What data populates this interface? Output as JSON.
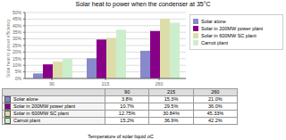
{
  "chart_data": {
    "type": "bar",
    "title": "Solar heat to power when the condenser at 35°C",
    "xlabel": "Temperature of solar liquid oC",
    "ylabel": "Solar heat to power efficiency",
    "categories": [
      "90",
      "215",
      "260"
    ],
    "series": [
      {
        "name": "Solar alone",
        "color": "#8888CC",
        "values": [
          3.8,
          15.3,
          21.0
        ],
        "value_labels": [
          "3.8%",
          "15.3%",
          "21.0%"
        ]
      },
      {
        "name": "Solar in 200MW power plant",
        "color": "#880088",
        "values": [
          10.7,
          29.5,
          36.0
        ],
        "value_labels": [
          "10.7%",
          "29.5%",
          "36.0%"
        ]
      },
      {
        "name": "Solar in 600MW SC plant",
        "color": "#DDDDAA",
        "values": [
          12.75,
          30.84,
          45.33
        ],
        "value_labels": [
          "12.75%",
          "30.84%",
          "45.33%"
        ]
      },
      {
        "name": "Carnot plant",
        "color": "#CCEECC",
        "values": [
          15.2,
          36.9,
          42.2
        ],
        "value_labels": [
          "15.2%",
          "36.9%",
          "42.2%"
        ]
      }
    ],
    "ylim": [
      0,
      50
    ],
    "yticks": [
      {
        "value": 0,
        "label": "0%"
      },
      {
        "value": 5,
        "label": "5%"
      },
      {
        "value": 10,
        "label": "10%"
      },
      {
        "value": 15,
        "label": "15%"
      },
      {
        "value": 20,
        "label": "20%"
      },
      {
        "value": 25,
        "label": "25%"
      },
      {
        "value": 30,
        "label": "30%"
      },
      {
        "value": 35,
        "label": "35%"
      },
      {
        "value": 40,
        "label": "40%"
      },
      {
        "value": 45,
        "label": "45%"
      },
      {
        "value": 50,
        "label": "50%"
      }
    ],
    "grid": true,
    "legend": "right"
  }
}
